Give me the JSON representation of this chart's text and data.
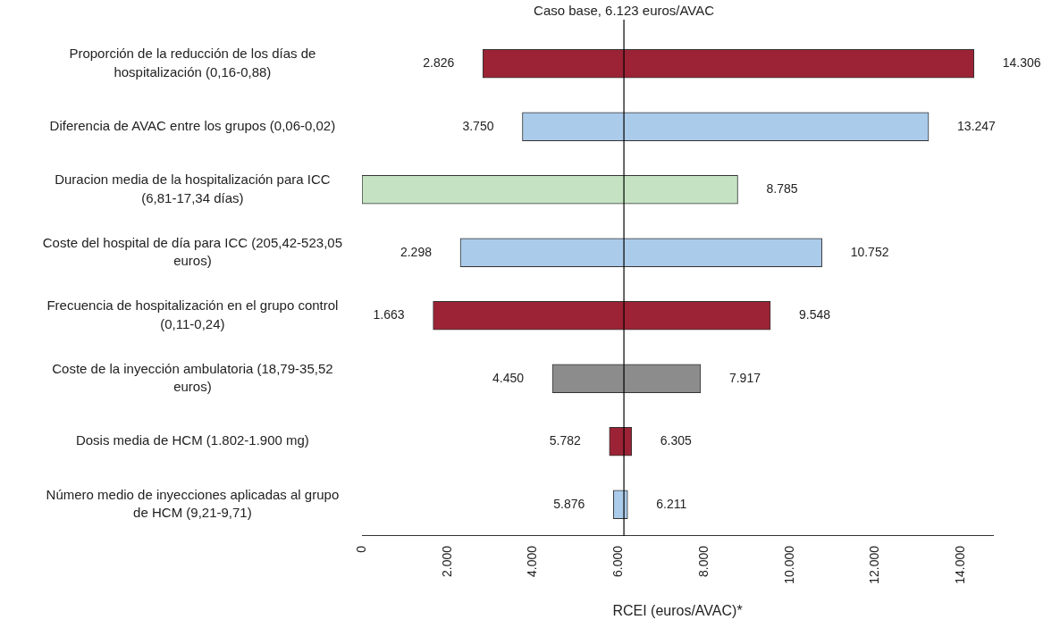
{
  "chart_data": {
    "type": "bar",
    "orientation": "horizontal",
    "categories": [
      "Proporción de la reducción de los días de hospitalización (0,16-0,88)",
      "Diferencia de AVAC entre los grupos (0,06-0,02)",
      "Duracion media de la hospitalización para ICC (6,81-17,34 días)",
      "Coste del hospital de día para ICC (205,42-523,05 euros)",
      "Frecuencia de hospitalización en el grupo control (0,11-0,24)",
      "Coste de la inyección ambulatoria (18,79-35,52 euros)",
      "Dosis media de HCM (1.802-1.900 mg)",
      "Número medio de inyecciones aplicadas al grupo de HCM (9,21-9,71)"
    ],
    "base": [
      2826,
      3750,
      0,
      2298,
      1663,
      4450,
      5782,
      5876
    ],
    "values": [
      11480,
      9497,
      8785,
      8454,
      7885,
      3467,
      523,
      335
    ],
    "colors": [
      "#9b2335",
      "#abcbea",
      "#c5e3c3",
      "#abcbea",
      "#9b2335",
      "#8c8c8c",
      "#9b2335",
      "#abcbea"
    ],
    "xlabel": "RCEI (euros/AVAC)*",
    "xlim": [
      0,
      14750
    ],
    "xticks": [
      0,
      {
        "value": 2000,
        "label": "2.000"
      },
      {
        "value": 4000,
        "label": "4.000"
      },
      {
        "value": 6000,
        "label": "6.000"
      },
      {
        "value": 8000,
        "label": "8.000"
      },
      {
        "value": 10000,
        "label": "10.000"
      },
      {
        "value": 12000,
        "label": "12.000"
      },
      {
        "value": 14000,
        "label": "14.000"
      }
    ],
    "ref_lines": [
      {
        "axis": "x",
        "value": 6123,
        "label": "Caso base, 6.123 euros/AVAC",
        "color": "#000000"
      }
    ],
    "annotations": [
      {
        "text": "2.826",
        "x": 2826,
        "y": "Proporción de la reducción de los días de hospitalización (0,16-0,88)"
      },
      {
        "text": "14.306",
        "x": 14306,
        "y": "Proporción de la reducción de los días de hospitalización (0,16-0,88)"
      },
      {
        "text": "3.750",
        "x": 3750,
        "y": "Diferencia de AVAC entre los grupos (0,06-0,02)"
      },
      {
        "text": "13.247",
        "x": 13247,
        "y": "Diferencia de AVAC entre los grupos (0,06-0,02)"
      },
      {
        "text": "8.785",
        "x": 8785,
        "y": "Duracion media de la hospitalización para ICC (6,81-17,34 días)"
      },
      {
        "text": "2.298",
        "x": 2298,
        "y": "Coste del hospital de día para ICC (205,42-523,05 euros)"
      },
      {
        "text": "10.752",
        "x": 10752,
        "y": "Coste del hospital de día para ICC (205,42-523,05 euros)"
      },
      {
        "text": "1.663",
        "x": 1663,
        "y": "Frecuencia de hospitalización en el grupo control (0,11-0,24)"
      },
      {
        "text": "9.548",
        "x": 9548,
        "y": "Frecuencia de hospitalización en el grupo control (0,11-0,24)"
      },
      {
        "text": "4.450",
        "x": 4450,
        "y": "Coste de la inyección ambulatoria (18,79-35,52 euros)"
      },
      {
        "text": "7.917",
        "x": 7917,
        "y": "Coste de la inyección ambulatoria (18,79-35,52 euros)"
      },
      {
        "text": "5.782",
        "x": 5782,
        "y": "Dosis media de HCM (1.802-1.900 mg)"
      },
      {
        "text": "6.305",
        "x": 6305,
        "y": "Dosis media de HCM (1.802-1.900 mg)"
      },
      {
        "text": "5.876",
        "x": 5876,
        "y": "Número medio de inyecciones aplicadas al grupo de HCM (9,21-9,71)"
      },
      {
        "text": "6.211",
        "x": 6211,
        "y": "Número medio de inyecciones aplicadas al grupo de HCM (9,21-9,71)"
      }
    ],
    "grid": false,
    "legend": false
  }
}
